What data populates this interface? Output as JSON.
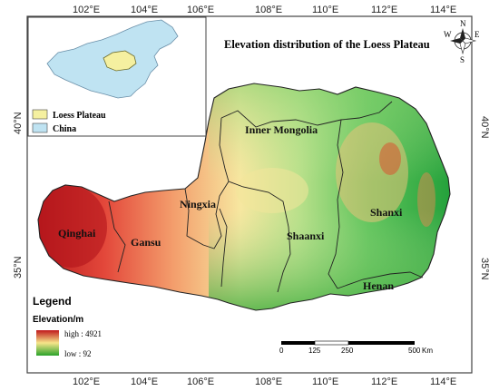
{
  "map": {
    "title": "Elevation distribution of the Loess Plateau",
    "lon_ticks": [
      "102°E",
      "104°E",
      "106°E",
      "108°E",
      "110°E",
      "112°E",
      "114°E"
    ],
    "lat_ticks": [
      "40°N",
      "35°N"
    ],
    "regions": [
      {
        "name": "Inner Mongolia"
      },
      {
        "name": "Ningxia"
      },
      {
        "name": "Qinghai"
      },
      {
        "name": "Gansu"
      },
      {
        "name": "Shaanxi"
      },
      {
        "name": "Shanxi"
      },
      {
        "name": "Henan"
      }
    ],
    "colors": {
      "high": "#c0181c",
      "mid": "#f6e58a",
      "low": "#2aa22a",
      "loess_plateau": "#f5f0a0",
      "china": "#bfe3f2",
      "frame": "#444444"
    }
  },
  "inset": {
    "legend": [
      {
        "label": "Loess Plateau",
        "color": "#f5f0a0"
      },
      {
        "label": "China",
        "color": "#bfe3f2"
      }
    ]
  },
  "compass": {
    "n": "N",
    "s": "S",
    "e": "E",
    "w": "W"
  },
  "legend": {
    "title": "Legend",
    "subtitle": "Elevation/m",
    "high_label": "high : 4921",
    "low_label": "low : 92",
    "high_value": 4921,
    "low_value": 92
  },
  "scale_bar": {
    "ticks": [
      "0",
      "125",
      "250",
      "500"
    ],
    "unit": "Km"
  }
}
